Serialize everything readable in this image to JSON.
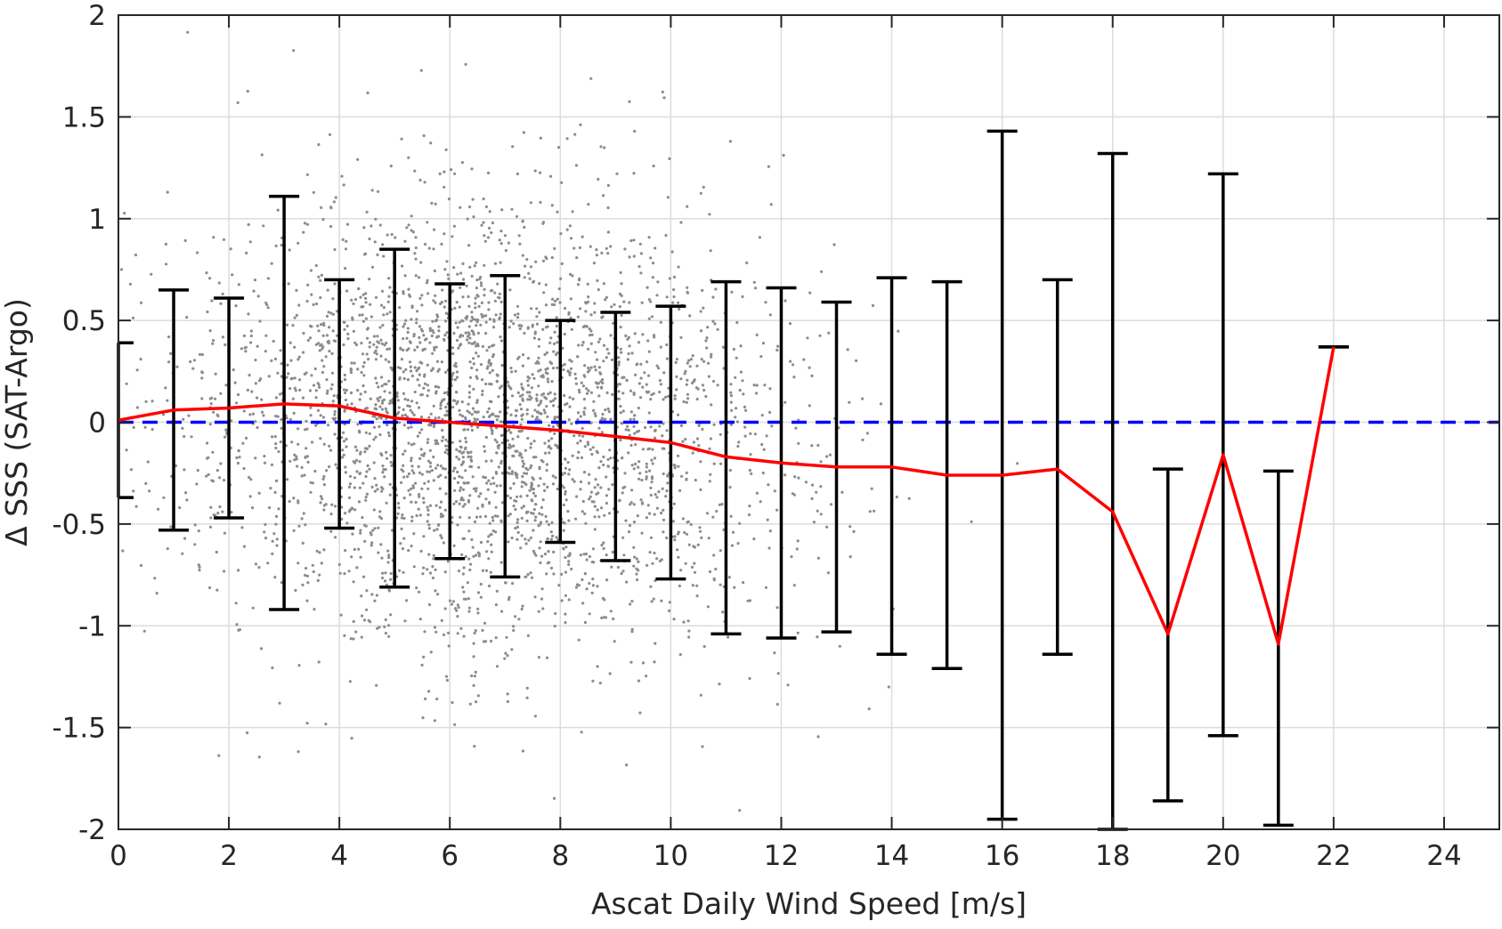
{
  "chart_data": {
    "type": "scatter",
    "xlabel": "Ascat Daily Wind Speed [m/s]",
    "ylabel": "Δ SSS (SAT-Argo)",
    "xlim": [
      0,
      25
    ],
    "ylim": [
      -2,
      2
    ],
    "xticks": [
      0,
      2,
      4,
      6,
      8,
      10,
      12,
      14,
      16,
      18,
      20,
      22,
      24
    ],
    "yticks": [
      -2,
      -1.5,
      -1,
      -0.5,
      0,
      0.5,
      1,
      1.5,
      2
    ],
    "grid": true,
    "colors": {
      "scatter": "#8c8c8c",
      "mean_line": "#ff0000",
      "error_bars": "#000000",
      "zero_line": "#0000ff",
      "grid": "#dcdcdc",
      "axes": "#262626"
    },
    "scatter_description_count": 9000,
    "mean_line": {
      "x": [
        0,
        1,
        2,
        3,
        4,
        5,
        6,
        7,
        8,
        9,
        10,
        11,
        12,
        13,
        14,
        15,
        16,
        17,
        18,
        19,
        20,
        21,
        22
      ],
      "y": [
        0.01,
        0.06,
        0.07,
        0.09,
        0.08,
        0.02,
        0.0,
        -0.02,
        -0.04,
        -0.07,
        -0.1,
        -0.17,
        -0.2,
        -0.22,
        -0.22,
        -0.26,
        -0.26,
        -0.23,
        -0.44,
        -1.04,
        -0.16,
        -1.09,
        0.37
      ]
    },
    "error_bars": {
      "x": [
        0,
        1,
        2,
        3,
        4,
        5,
        6,
        7,
        8,
        9,
        10,
        11,
        12,
        13,
        14,
        15,
        16,
        17,
        18,
        19,
        20,
        21,
        22
      ],
      "lower": [
        -0.37,
        -0.53,
        -0.47,
        -0.92,
        -0.52,
        -0.81,
        -0.67,
        -0.76,
        -0.59,
        -0.68,
        -0.77,
        -1.04,
        -1.06,
        -1.03,
        -1.14,
        -1.21,
        -1.95,
        -1.14,
        -2.0,
        -1.86,
        -1.54,
        -1.98,
        0.37
      ],
      "upper": [
        0.39,
        0.65,
        0.61,
        1.11,
        0.7,
        0.85,
        0.68,
        0.72,
        0.5,
        0.54,
        0.57,
        0.69,
        0.66,
        0.59,
        0.71,
        0.69,
        1.43,
        0.7,
        1.32,
        -0.23,
        1.22,
        -0.24,
        0.37
      ]
    },
    "reference_line": {
      "y": 0,
      "style": "dashed"
    }
  }
}
